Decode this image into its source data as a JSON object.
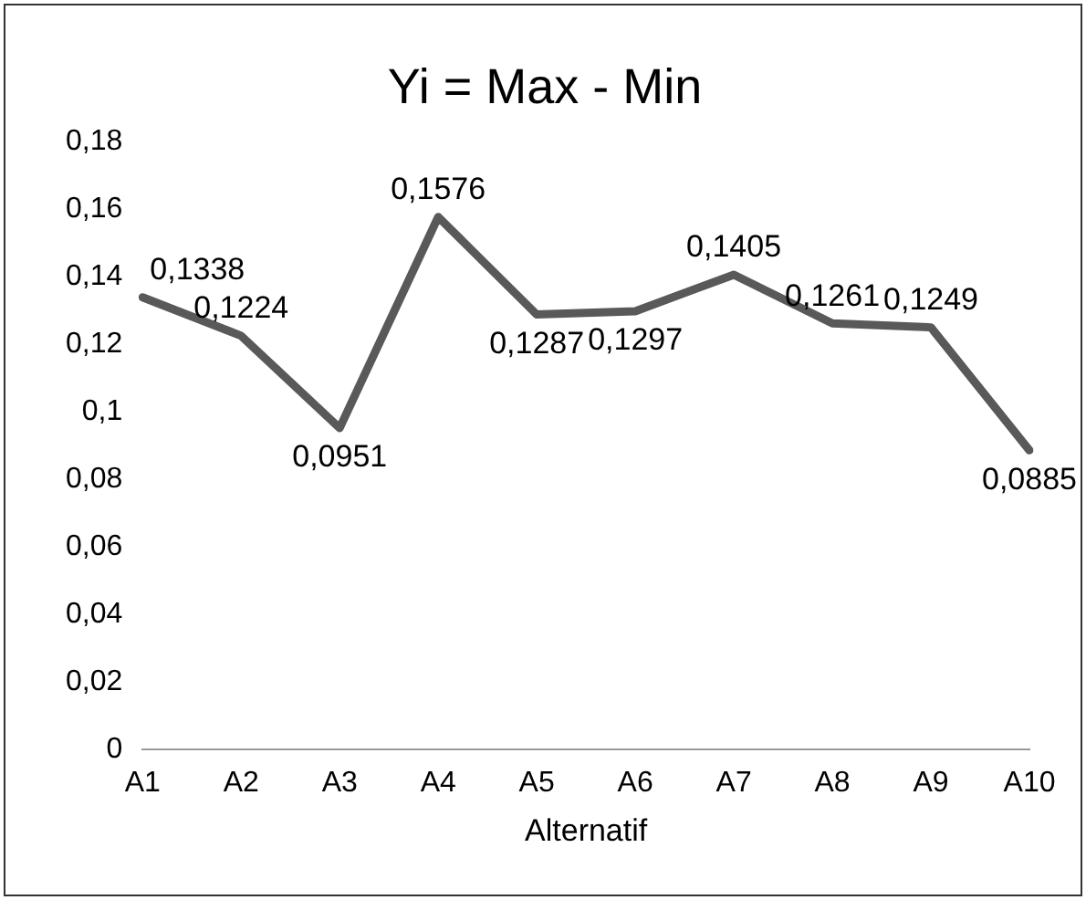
{
  "chart_data": {
    "type": "line",
    "title": "Yi = Max - Min",
    "xlabel": "Alternatif",
    "categories": [
      "A1",
      "A2",
      "A3",
      "A4",
      "A5",
      "A6",
      "A7",
      "A8",
      "A9",
      "A10"
    ],
    "series": [
      {
        "color": "#595959",
        "values": [
          0.1338,
          0.1224,
          0.0951,
          0.1576,
          0.1287,
          0.1297,
          0.1405,
          0.1261,
          0.1249,
          0.0885
        ],
        "value_labels": [
          "0,1338",
          "0,1224",
          "0,0951",
          "0,1576",
          "0,1287",
          "0,1297",
          "0,1405",
          "0,1261",
          "0,1249",
          "0,0885"
        ]
      }
    ],
    "ylim": [
      0,
      0.18
    ],
    "yticks": [
      0,
      {
        "value": 0.02,
        "label": "0,02"
      },
      {
        "value": 0.04,
        "label": "0,04"
      },
      {
        "value": 0.06,
        "label": "0,06"
      },
      {
        "value": 0.08,
        "label": "0,08"
      },
      {
        "value": 0.1,
        "label": "0,1"
      },
      {
        "value": 0.12,
        "label": "0,12"
      },
      {
        "value": 0.14,
        "label": "0,14"
      },
      {
        "value": 0.16,
        "label": "0,16"
      },
      {
        "value": 0.18,
        "label": "0,18"
      }
    ],
    "grid": false,
    "legend": false,
    "marker": "none",
    "line_style": "solid"
  }
}
